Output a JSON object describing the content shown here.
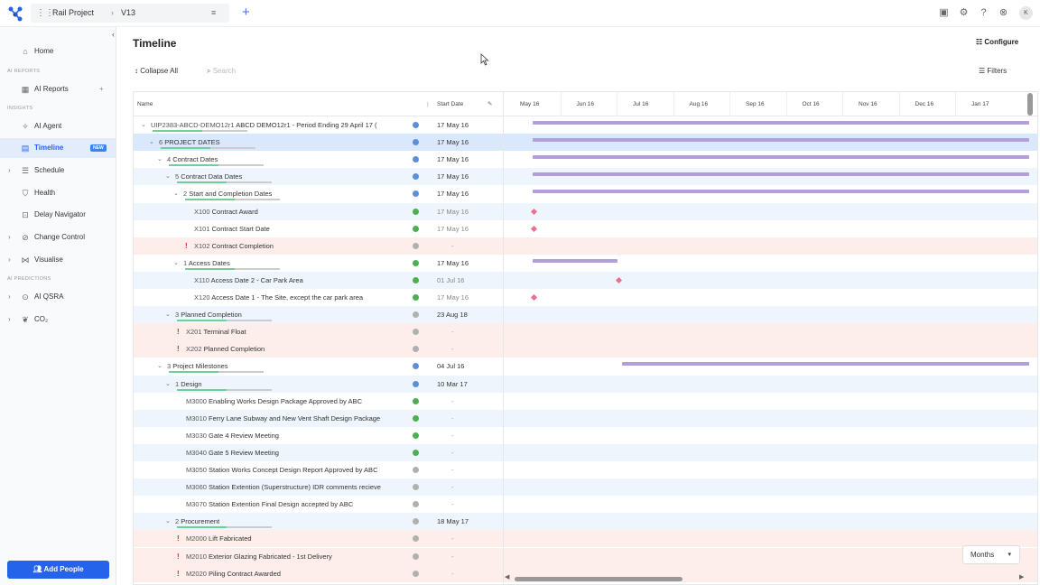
{
  "topbar": {
    "project_name": "Rail Project",
    "separator": "›",
    "version": "V13",
    "avatar_initials": "K"
  },
  "sidebar": {
    "sections": {
      "ai_reports": "AI REPORTS",
      "insights": "INSIGHTS",
      "ai_predictions": "AI PREDICTIONS"
    },
    "items": [
      {
        "label": "Home"
      },
      {
        "label": "AI Reports"
      },
      {
        "label": "AI Agent"
      },
      {
        "label": "Timeline",
        "badge": "NEW"
      },
      {
        "label": "Schedule"
      },
      {
        "label": "Health"
      },
      {
        "label": "Delay Navigator"
      },
      {
        "label": "Change Control"
      },
      {
        "label": "Visualise"
      },
      {
        "label": "AI QSRA"
      },
      {
        "label": "CO₂"
      }
    ],
    "add_people": "Add People"
  },
  "main": {
    "title": "Timeline",
    "configure": "Configure",
    "collapse_all": "Collapse All",
    "search_placeholder": "Search",
    "filters": "Filters",
    "columns": {
      "name": "Name",
      "start_date": "Start Date"
    },
    "months": [
      "May 16",
      "Jun 16",
      "Jul 16",
      "Aug 16",
      "Sep 16",
      "Oct 16",
      "Nov 16",
      "Dec 16",
      "Jan 17"
    ],
    "scale": "Months"
  },
  "rows": [
    {
      "code": "UIP2383-ABCD-DEMO12r1",
      "label": "ABCD DEMO12r1 - Period Ending 29 April 17 (",
      "start": "17 May 16",
      "level": 0,
      "expand": true,
      "status": "blue",
      "bar": [
        0.0,
        1.0
      ]
    },
    {
      "code": "6",
      "label": "PROJECT DATES",
      "start": "17 May 16",
      "level": 1,
      "expand": true,
      "status": "blue",
      "bar": [
        0.0,
        1.0
      ]
    },
    {
      "code": "4",
      "label": "Contract Dates",
      "start": "17 May 16",
      "level": 2,
      "expand": true,
      "status": "blue",
      "bar": [
        0.0,
        1.0
      ]
    },
    {
      "code": "5",
      "label": "Contract Data Dates",
      "start": "17 May 16",
      "level": 3,
      "expand": true,
      "status": "blue",
      "bar": [
        0.0,
        1.0
      ]
    },
    {
      "code": "2",
      "label": "Start and Completion Dates",
      "start": "17 May 16",
      "level": 4,
      "expand": true,
      "status": "blue",
      "bar": [
        0.0,
        1.0
      ]
    },
    {
      "code": "X100",
      "label": "Contract Award",
      "start": "17 May 16",
      "level": 5,
      "status": "green",
      "milestone": 0.0
    },
    {
      "code": "X101",
      "label": "Contract Start Date",
      "start": "17 May 16",
      "level": 5,
      "status": "green",
      "milestone": 0.0
    },
    {
      "code": "X102",
      "label": "Contract Completion",
      "start": "-",
      "level": 5,
      "status": "grey",
      "warn": true
    },
    {
      "code": "1",
      "label": "Access Dates",
      "start": "17 May 16",
      "level": 4,
      "expand": true,
      "status": "green",
      "bar": [
        0.0,
        0.17
      ]
    },
    {
      "code": "X110",
      "label": "Access Date 2 - Car Park Area",
      "start": "01 Jul 16",
      "level": 5,
      "status": "green",
      "milestone": 0.17
    },
    {
      "code": "X120",
      "label": "Access Date 1 - The Site, except the car park area",
      "start": "17 May 16",
      "level": 5,
      "status": "green",
      "milestone": 0.0
    },
    {
      "code": "3",
      "label": "Planned Completion",
      "start": "23 Aug 18",
      "level": 3,
      "expand": true,
      "status": "grey"
    },
    {
      "code": "X201",
      "label": "Terminal Float",
      "start": "-",
      "level": 4,
      "status": "grey",
      "warn": true
    },
    {
      "code": "X202",
      "label": "Planned Completion",
      "start": "-",
      "level": 4,
      "status": "grey",
      "warn": true
    },
    {
      "code": "3",
      "label": "Project Milestones",
      "start": "04 Jul 16",
      "level": 2,
      "expand": true,
      "status": "blue",
      "bar": [
        0.18,
        1.0
      ]
    },
    {
      "code": "1",
      "label": "Design",
      "start": "10 Mar 17",
      "level": 3,
      "expand": true,
      "status": "blue"
    },
    {
      "code": "M3000",
      "label": "Enabling Works Design Package Approved by ABC",
      "start": "-",
      "level": 4,
      "status": "green"
    },
    {
      "code": "M3010",
      "label": "Ferry Lane Subway and New Vent Shaft Design Package",
      "start": "-",
      "level": 4,
      "status": "green"
    },
    {
      "code": "M3030",
      "label": "Gate 4 Review Meeting",
      "start": "-",
      "level": 4,
      "status": "green"
    },
    {
      "code": "M3040",
      "label": "Gate 5 Review Meeting",
      "start": "-",
      "level": 4,
      "status": "green"
    },
    {
      "code": "M3050",
      "label": "Station Works Concept Design Report Approved by ABC",
      "start": "-",
      "level": 4,
      "status": "grey"
    },
    {
      "code": "M3060",
      "label": "Station Extention (Superstructure) IDR comments recieve",
      "start": "-",
      "level": 4,
      "status": "grey"
    },
    {
      "code": "M3070",
      "label": "Station Extention Final Design accepted by ABC",
      "start": "-",
      "level": 4,
      "status": "grey"
    },
    {
      "code": "2",
      "label": "Procurement",
      "start": "18 May 17",
      "level": 3,
      "expand": true,
      "status": "grey"
    },
    {
      "code": "M2000",
      "label": "Lift Fabricated",
      "start": "-",
      "level": 4,
      "status": "grey",
      "warn": true
    },
    {
      "code": "M2010",
      "label": "Exterior Glazing Fabricated - 1st Delivery",
      "start": "-",
      "level": 4,
      "status": "grey",
      "warn": true
    },
    {
      "code": "M2020",
      "label": "Piling Contract Awarded",
      "start": "-",
      "level": 4,
      "status": "grey",
      "warn": true
    }
  ],
  "colors": {
    "accent": "#2563eb",
    "bar": "#b39ddb",
    "milestone": "#ec6f8f",
    "selected_row": "#d9e8fb",
    "alt_row": "#eef5fc",
    "warn_row": "#fdeeec",
    "green": "#4caf50",
    "blue": "#5b8fd9",
    "grey": "#b0b0b0"
  }
}
